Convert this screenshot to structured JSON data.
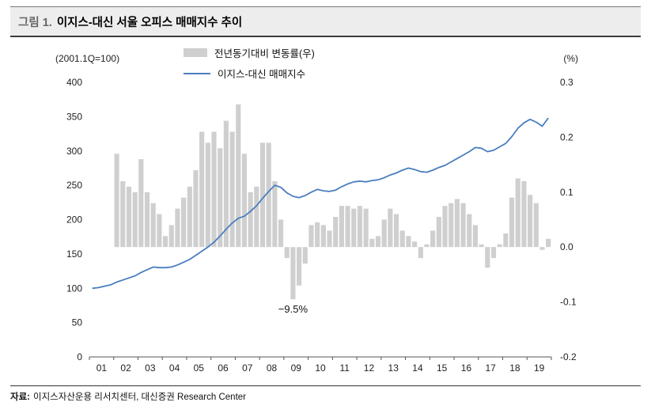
{
  "header": {
    "figure_label": "그림 1.",
    "title": "이지스-대신 서울 오피스 매매지수 추이"
  },
  "footer": {
    "source_label": "자료:",
    "source_text": "이지스자산운용 리서치센터, 대신증권 Research Center"
  },
  "chart_data": {
    "type": "combo",
    "title": "이지스-대신 서울 오피스 매매지수 추이",
    "x_range": "2001Q1–2019Q4",
    "x_frequency": "quarterly",
    "x_tick_labels": [
      "01",
      "02",
      "03",
      "04",
      "05",
      "06",
      "07",
      "08",
      "09",
      "10",
      "11",
      "12",
      "13",
      "14",
      "15",
      "16",
      "17",
      "18",
      "19"
    ],
    "left_axis": {
      "label": "(2001.1Q=100)",
      "min": 0,
      "max": 400,
      "ticks": [
        0,
        50,
        100,
        150,
        200,
        250,
        300,
        350,
        400
      ]
    },
    "right_axis": {
      "label": "(%)",
      "min": -0.2,
      "max": 0.3,
      "ticks": [
        "-0.2",
        "-0.1",
        "0.0",
        "0.1",
        "0.2",
        "0.3"
      ]
    },
    "series": [
      {
        "name": "전년동기대비 변동률(우)",
        "kind": "bar",
        "axis": "right",
        "values": [
          null,
          null,
          null,
          null,
          0.17,
          0.12,
          0.11,
          0.1,
          0.16,
          0.1,
          0.08,
          0.06,
          0.02,
          0.04,
          0.07,
          0.09,
          0.11,
          0.14,
          0.21,
          0.19,
          0.21,
          0.18,
          0.23,
          0.21,
          0.26,
          0.17,
          0.1,
          0.11,
          0.19,
          0.19,
          0.12,
          0.05,
          -0.02,
          -0.095,
          -0.07,
          -0.03,
          0.04,
          0.045,
          0.04,
          0.03,
          0.055,
          0.075,
          0.075,
          0.07,
          0.075,
          0.07,
          0.015,
          0.02,
          0.05,
          0.07,
          0.06,
          0.03,
          0.02,
          0.01,
          -0.02,
          0.005,
          0.03,
          0.055,
          0.075,
          0.08,
          0.0875,
          0.08,
          0.06,
          0.04,
          0.005,
          -0.0375,
          -0.02,
          0.005,
          0.025,
          0.09,
          0.125,
          0.12,
          0.095,
          0.08,
          -0.005,
          0.015
        ]
      },
      {
        "name": "이지스-대신 매매지수",
        "kind": "line",
        "axis": "left",
        "values": [
          100,
          101,
          103,
          105,
          109,
          112,
          115,
          118,
          123,
          127,
          131,
          130,
          130,
          131,
          134,
          138,
          142,
          148,
          154,
          160,
          167,
          176,
          186,
          195,
          202,
          205,
          212,
          220,
          231,
          241,
          250,
          247,
          239,
          234,
          232,
          235,
          240,
          244,
          242,
          241,
          243,
          248,
          252,
          255,
          256,
          255,
          257,
          258,
          261,
          265,
          268,
          272,
          275,
          273,
          270,
          269,
          272,
          276,
          279,
          284,
          289,
          294,
          299,
          305,
          304,
          299,
          301,
          306,
          311,
          321,
          333,
          341,
          346,
          342,
          336,
          348
        ]
      }
    ],
    "annotation": {
      "text": "−9.5%",
      "quarter_index": 33
    },
    "colors": {
      "bar": "#cfcfcf",
      "line": "#4a7ebf"
    },
    "legend_position": "top-center",
    "grid": false
  }
}
